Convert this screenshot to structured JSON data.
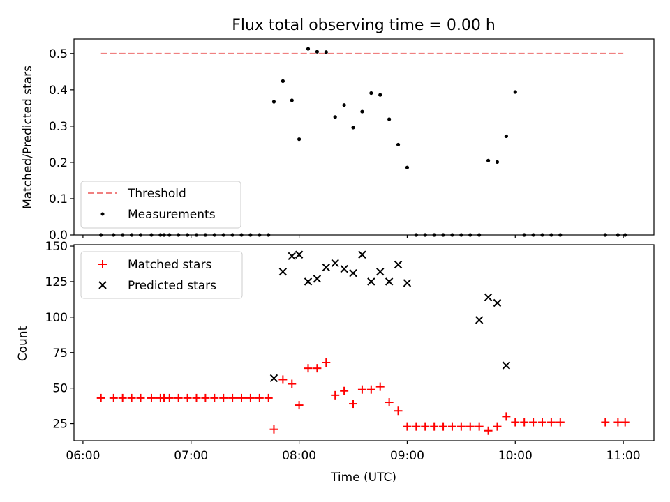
{
  "figure": {
    "title": "Flux total observing time = 0.00 h",
    "xlabel": "Time (UTC)"
  },
  "chart_data": [
    {
      "type": "scatter",
      "title": "Flux total observing time = 0.00 h",
      "xlabel": "",
      "ylabel": "Matched/Predicted stars",
      "ylim": [
        0,
        0.54
      ],
      "yticks": [
        0.0,
        0.1,
        0.2,
        0.3,
        0.4,
        0.5
      ],
      "ytick_labels": [
        "0.0",
        "0.1",
        "0.2",
        "0.3",
        "0.4",
        "0.5"
      ],
      "xlim": [
        "05:55",
        "11:17"
      ],
      "grid": false,
      "legend": "lower-left",
      "threshold": {
        "name": "Threshold",
        "value": 0.5,
        "x": [
          "06:10",
          "11:00"
        ],
        "color": "#f08080"
      },
      "series": [
        {
          "name": "Measurements",
          "color": "#000000",
          "x": [
            "06:10",
            "06:17",
            "06:22",
            "06:27",
            "06:32",
            "06:38",
            "06:43",
            "06:45",
            "06:48",
            "06:53",
            "06:58",
            "07:03",
            "07:08",
            "07:13",
            "07:18",
            "07:23",
            "07:28",
            "07:33",
            "07:38",
            "07:43",
            "07:46",
            "07:51",
            "07:56",
            "08:00",
            "08:05",
            "08:10",
            "08:15",
            "08:20",
            "08:25",
            "08:30",
            "08:35",
            "08:40",
            "08:45",
            "08:50",
            "08:55",
            "09:00",
            "09:05",
            "09:10",
            "09:15",
            "09:20",
            "09:25",
            "09:30",
            "09:35",
            "09:40",
            "09:45",
            "09:50",
            "09:55",
            "10:00",
            "10:05",
            "10:10",
            "10:15",
            "10:20",
            "10:25",
            "10:50",
            "10:57",
            "11:01"
          ],
          "y": [
            0,
            0,
            0,
            0,
            0,
            0,
            0,
            0,
            0,
            0,
            0,
            0,
            0,
            0,
            0,
            0,
            0,
            0,
            0,
            0,
            0.367,
            0.424,
            0.371,
            0.264,
            0.513,
            0.505,
            0.504,
            0.325,
            0.358,
            0.296,
            0.34,
            0.391,
            0.386,
            0.319,
            0.249,
            0.186,
            0,
            0,
            0,
            0,
            0,
            0,
            0,
            0,
            0.205,
            0.201,
            0.272,
            0.394,
            0,
            0,
            0,
            0,
            0,
            0,
            0,
            0
          ]
        }
      ]
    },
    {
      "type": "scatter",
      "xlabel": "Time (UTC)",
      "ylabel": "Count",
      "ylim": [
        13,
        151
      ],
      "yticks": [
        25,
        50,
        75,
        100,
        125,
        150
      ],
      "ytick_labels": [
        "25",
        "50",
        "75",
        "100",
        "125",
        "150"
      ],
      "xlim": [
        "05:55",
        "11:17"
      ],
      "xticks": [
        "06:00",
        "07:00",
        "08:00",
        "09:00",
        "10:00",
        "11:00"
      ],
      "xtick_labels": [
        "06:00",
        "07:00",
        "08:00",
        "09:00",
        "10:00",
        "11:00"
      ],
      "grid": false,
      "legend": "upper-left",
      "series": [
        {
          "name": "Matched stars",
          "marker": "plus",
          "color": "#ff0000",
          "x": [
            "06:10",
            "06:17",
            "06:22",
            "06:27",
            "06:32",
            "06:38",
            "06:43",
            "06:45",
            "06:48",
            "06:53",
            "06:58",
            "07:03",
            "07:08",
            "07:13",
            "07:18",
            "07:23",
            "07:28",
            "07:33",
            "07:38",
            "07:43",
            "07:46",
            "07:51",
            "07:56",
            "08:00",
            "08:05",
            "08:10",
            "08:15",
            "08:20",
            "08:25",
            "08:30",
            "08:35",
            "08:40",
            "08:45",
            "08:50",
            "08:55",
            "09:00",
            "09:05",
            "09:10",
            "09:15",
            "09:20",
            "09:25",
            "09:30",
            "09:35",
            "09:40",
            "09:45",
            "09:50",
            "09:55",
            "10:00",
            "10:05",
            "10:10",
            "10:15",
            "10:20",
            "10:25",
            "10:50",
            "10:57",
            "11:01"
          ],
          "y": [
            43,
            43,
            43,
            43,
            43,
            43,
            43,
            43,
            43,
            43,
            43,
            43,
            43,
            43,
            43,
            43,
            43,
            43,
            43,
            43,
            21,
            56,
            53,
            38,
            64,
            64,
            68,
            45,
            48,
            39,
            49,
            49,
            51,
            40,
            34,
            23,
            23,
            23,
            23,
            23,
            23,
            23,
            23,
            23,
            20,
            23,
            30,
            26,
            26,
            26,
            26,
            26,
            26,
            26,
            26,
            26
          ]
        },
        {
          "name": "Predicted stars",
          "marker": "x",
          "color": "#000000",
          "x": [
            "07:46",
            "07:51",
            "07:56",
            "08:00",
            "08:05",
            "08:10",
            "08:15",
            "08:20",
            "08:25",
            "08:30",
            "08:35",
            "08:40",
            "08:45",
            "08:50",
            "08:55",
            "09:00",
            "09:40",
            "09:45",
            "09:50",
            "09:55"
          ],
          "y": [
            57,
            132,
            143,
            144,
            125,
            127,
            135,
            138,
            134,
            131,
            144,
            125,
            132,
            125,
            137,
            124,
            98,
            114,
            110,
            66
          ]
        }
      ]
    }
  ]
}
